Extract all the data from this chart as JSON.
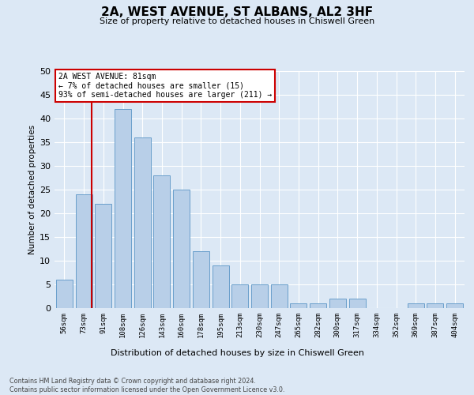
{
  "title": "2A, WEST AVENUE, ST ALBANS, AL2 3HF",
  "subtitle": "Size of property relative to detached houses in Chiswell Green",
  "xlabel": "Distribution of detached houses by size in Chiswell Green",
  "ylabel": "Number of detached properties",
  "categories": [
    "56sqm",
    "73sqm",
    "91sqm",
    "108sqm",
    "126sqm",
    "143sqm",
    "160sqm",
    "178sqm",
    "195sqm",
    "213sqm",
    "230sqm",
    "247sqm",
    "265sqm",
    "282sqm",
    "300sqm",
    "317sqm",
    "334sqm",
    "352sqm",
    "369sqm",
    "387sqm",
    "404sqm"
  ],
  "values": [
    6,
    24,
    22,
    42,
    36,
    28,
    25,
    12,
    9,
    5,
    5,
    5,
    1,
    1,
    2,
    2,
    0,
    0,
    1,
    1,
    1
  ],
  "bar_color": "#b8cfe8",
  "bar_edge_color": "#6a9fcb",
  "background_color": "#dce8f5",
  "ylim": [
    0,
    50
  ],
  "yticks": [
    0,
    5,
    10,
    15,
    20,
    25,
    30,
    35,
    40,
    45,
    50
  ],
  "vline_color": "#cc0000",
  "vline_x": 1.42,
  "annotation_text": "2A WEST AVENUE: 81sqm\n← 7% of detached houses are smaller (15)\n93% of semi-detached houses are larger (211) →",
  "annotation_box_facecolor": "#ffffff",
  "annotation_box_edgecolor": "#cc0000",
  "footer_line1": "Contains HM Land Registry data © Crown copyright and database right 2024.",
  "footer_line2": "Contains public sector information licensed under the Open Government Licence v3.0."
}
